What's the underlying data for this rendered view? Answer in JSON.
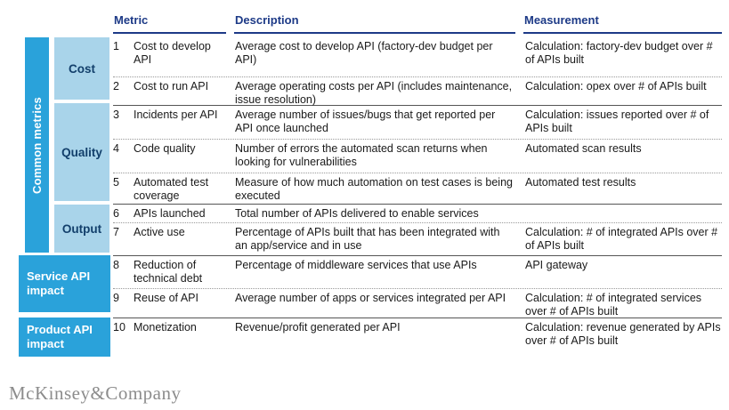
{
  "header": {
    "metric": "Metric",
    "description": "Description",
    "measurement": "Measurement"
  },
  "sidebar": {
    "common_metrics_label": "Common metrics",
    "categories": [
      {
        "label": "Cost"
      },
      {
        "label": "Quality"
      },
      {
        "label": "Output"
      }
    ],
    "impact_groups": [
      {
        "label": "Service API impact"
      },
      {
        "label": "Product API impact"
      }
    ]
  },
  "rows": [
    {
      "num": "1",
      "metric": "Cost to develop API",
      "description": "Average cost to develop API (factory-dev budget per API)",
      "measurement": "Calculation: factory-dev budget over # of APIs built"
    },
    {
      "num": "2",
      "metric": "Cost to run API",
      "description": "Average operating costs per API (includes maintenance, issue resolution)",
      "measurement": "Calculation: opex over # of APIs built"
    },
    {
      "num": "3",
      "metric": "Incidents per API",
      "description": "Average number of issues/bugs that get reported per API once launched",
      "measurement": "Calculation: issues reported over # of APIs built"
    },
    {
      "num": "4",
      "metric": "Code quality",
      "description": "Number of errors the automated scan returns when looking for vulnerabilities",
      "measurement": "Automated scan results"
    },
    {
      "num": "5",
      "metric": "Automated test coverage",
      "description": "Measure of how much automation on test cases is being executed",
      "measurement": "Automated test results"
    },
    {
      "num": "6",
      "metric": "APIs launched",
      "description": "Total number of APIs delivered to enable services",
      "measurement": ""
    },
    {
      "num": "7",
      "metric": "Active use",
      "description": "Percentage of APIs built that has been integrated with an app/service and in use",
      "measurement": "Calculation: # of integrated APIs over # of APIs built"
    },
    {
      "num": "8",
      "metric": "Reduction of technical debt",
      "description": "Percentage of middleware services that use APIs",
      "measurement": "API gateway"
    },
    {
      "num": "9",
      "metric": "Reuse of API",
      "description": "Average number of apps or services integrated per API",
      "measurement": "Calculation: # of integrated services over # of APIs built"
    },
    {
      "num": "10",
      "metric": "Monetization",
      "description": "Revenue/profit generated per API",
      "measurement": "Calculation: revenue generated by APIs over # of APIs built"
    }
  ],
  "footer": {
    "logo": "McKinsey&Company"
  },
  "colors": {
    "accent_blue": "#2aa2da",
    "light_blue": "#a9d4ea",
    "navy": "#1d3a87",
    "label_navy": "#123f6b",
    "logo_gray": "#8c8c8c"
  }
}
